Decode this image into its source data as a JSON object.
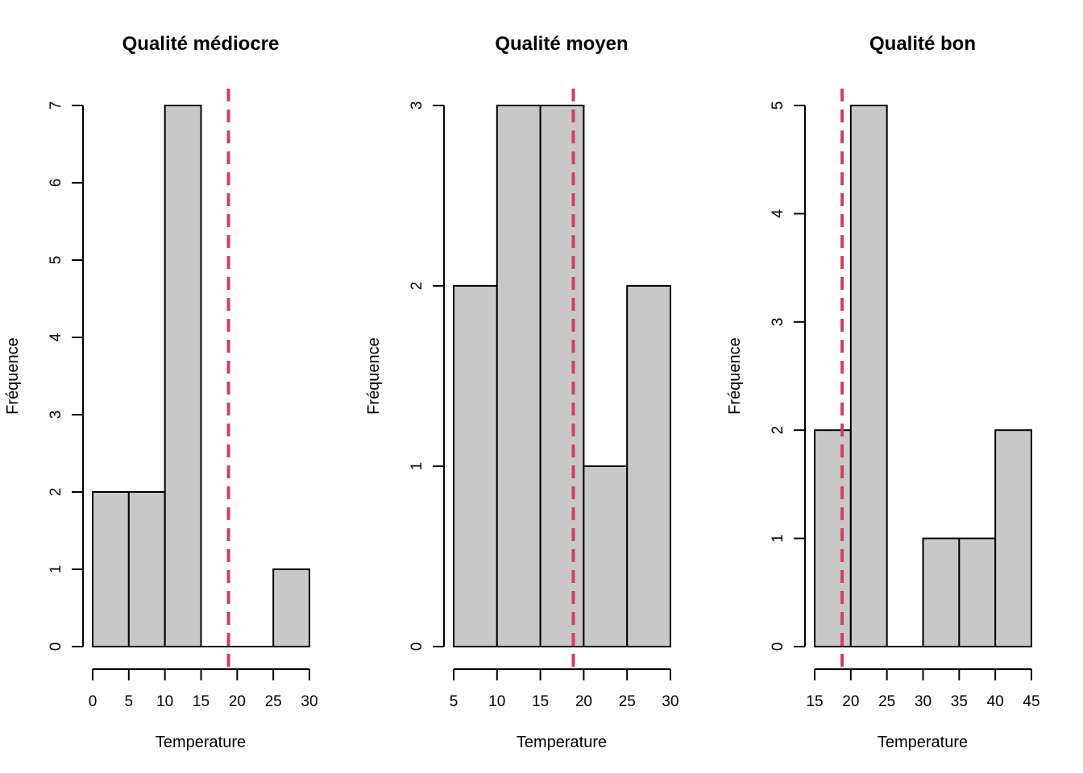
{
  "colors": {
    "bar_fill": "#c8c8c8",
    "bar_stroke": "#000000",
    "reference_line": "#d0405e"
  },
  "chart_data": [
    {
      "type": "bar",
      "subtype": "histogram",
      "title": "Qualité médiocre",
      "xlabel": "Temperature",
      "ylabel": "Fréquence",
      "bins": [
        [
          0,
          5
        ],
        [
          5,
          10
        ],
        [
          10,
          15
        ],
        [
          15,
          20
        ],
        [
          20,
          25
        ],
        [
          25,
          30
        ]
      ],
      "values": [
        2,
        2,
        7,
        0,
        0,
        1
      ],
      "xlim": [
        0,
        30
      ],
      "ylim": [
        0,
        7
      ],
      "xticks": [
        0,
        5,
        10,
        15,
        20,
        25,
        30
      ],
      "yticks": [
        0,
        1,
        2,
        3,
        4,
        5,
        6,
        7
      ],
      "reference_line": {
        "x": 18.8,
        "style": "dashed"
      },
      "grid": false,
      "legend": "none"
    },
    {
      "type": "bar",
      "subtype": "histogram",
      "title": "Qualité moyen",
      "xlabel": "Temperature",
      "ylabel": "Fréquence",
      "bins": [
        [
          5,
          10
        ],
        [
          10,
          15
        ],
        [
          15,
          20
        ],
        [
          20,
          25
        ],
        [
          25,
          30
        ]
      ],
      "values": [
        2,
        3,
        3,
        1,
        2
      ],
      "xlim": [
        5,
        30
      ],
      "ylim": [
        0,
        3
      ],
      "xticks": [
        5,
        10,
        15,
        20,
        25,
        30
      ],
      "yticks": [
        0,
        1,
        2,
        3
      ],
      "reference_line": {
        "x": 18.8,
        "style": "dashed"
      },
      "grid": false,
      "legend": "none"
    },
    {
      "type": "bar",
      "subtype": "histogram",
      "title": "Qualité bon",
      "xlabel": "Temperature",
      "ylabel": "Fréquence",
      "bins": [
        [
          15,
          20
        ],
        [
          20,
          25
        ],
        [
          25,
          30
        ],
        [
          30,
          35
        ],
        [
          35,
          40
        ],
        [
          40,
          45
        ]
      ],
      "values": [
        2,
        5,
        0,
        1,
        1,
        2
      ],
      "xlim": [
        15,
        45
      ],
      "ylim": [
        0,
        5
      ],
      "xticks": [
        15,
        20,
        25,
        30,
        35,
        40,
        45
      ],
      "yticks": [
        0,
        1,
        2,
        3,
        4,
        5
      ],
      "reference_line": {
        "x": 18.8,
        "style": "dashed"
      },
      "grid": false,
      "legend": "none"
    }
  ]
}
